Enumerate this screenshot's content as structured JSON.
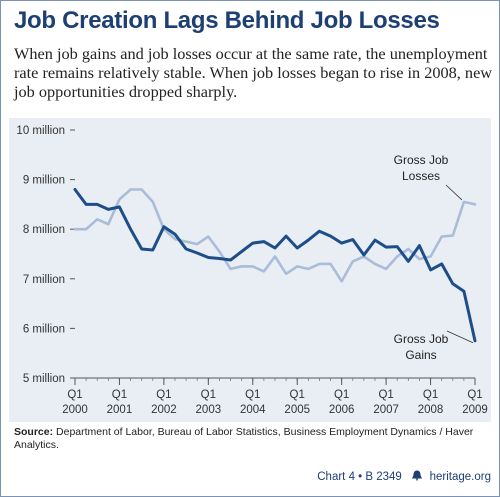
{
  "title": "Job Creation Lags Behind Job Losses",
  "subtitle": "When job gains and job losses occur at the same rate, the unemployment rate remains relatively stable. When job losses began to rise in 2008, new job opportunities dropped sharply.",
  "source_label": "Source:",
  "source_text": "Department of Labor, Bureau of Labor Statistics, Business Employment Dynamics / Haver Analytics.",
  "footer": {
    "chart_id": "Chart 4 • B 2349",
    "site": "heritage.org",
    "logo_icon": "liberty-bell-icon"
  },
  "colors": {
    "title": "#1d3f73",
    "panel": "#e9eef4",
    "gains": "#1d4e89",
    "losses": "#a9bcd8"
  },
  "chart_data": {
    "type": "line",
    "title": "",
    "xlabel": "",
    "ylabel": "",
    "ylim": [
      5,
      10
    ],
    "yticks": [
      {
        "value": 10,
        "label": "10 million"
      },
      {
        "value": 9,
        "label": "9 million"
      },
      {
        "value": 8,
        "label": "8 million"
      },
      {
        "value": 7,
        "label": "7 million"
      },
      {
        "value": 6,
        "label": "6 million"
      },
      {
        "value": 5,
        "label": "5 million"
      }
    ],
    "xticks": [
      {
        "q": "Q1",
        "year": "2000",
        "index": 0
      },
      {
        "q": "Q1",
        "year": "2001",
        "index": 4
      },
      {
        "q": "Q1",
        "year": "2002",
        "index": 8
      },
      {
        "q": "Q1",
        "year": "2003",
        "index": 12
      },
      {
        "q": "Q1",
        "year": "2004",
        "index": 16
      },
      {
        "q": "Q1",
        "year": "2005",
        "index": 20
      },
      {
        "q": "Q1",
        "year": "2006",
        "index": 24
      },
      {
        "q": "Q1",
        "year": "2007",
        "index": 28
      },
      {
        "q": "Q1",
        "year": "2008",
        "index": 32
      },
      {
        "q": "Q1",
        "year": "2009",
        "index": 36
      }
    ],
    "series": [
      {
        "name": "Gross Job Gains",
        "label_lines": [
          "Gross Job",
          "Gains"
        ],
        "values": [
          8.8,
          8.5,
          8.5,
          8.4,
          8.45,
          8.0,
          7.6,
          7.58,
          8.05,
          7.9,
          7.6,
          7.52,
          7.43,
          7.41,
          7.38,
          7.55,
          7.72,
          7.75,
          7.62,
          7.86,
          7.62,
          7.78,
          7.96,
          7.86,
          7.72,
          7.79,
          7.48,
          7.78,
          7.64,
          7.65,
          7.35,
          7.67,
          7.18,
          7.3,
          6.9,
          6.75,
          5.75
        ]
      },
      {
        "name": "Gross Job Losses",
        "label_lines": [
          "Gross Job",
          "Losses"
        ],
        "values": [
          8.0,
          8.0,
          8.2,
          8.1,
          8.6,
          8.8,
          8.8,
          8.55,
          8.0,
          7.8,
          7.75,
          7.7,
          7.85,
          7.55,
          7.2,
          7.25,
          7.25,
          7.15,
          7.45,
          7.1,
          7.25,
          7.2,
          7.3,
          7.3,
          6.95,
          7.35,
          7.45,
          7.3,
          7.2,
          7.45,
          7.6,
          7.4,
          7.45,
          7.85,
          7.87,
          8.55,
          8.5
        ]
      }
    ]
  }
}
